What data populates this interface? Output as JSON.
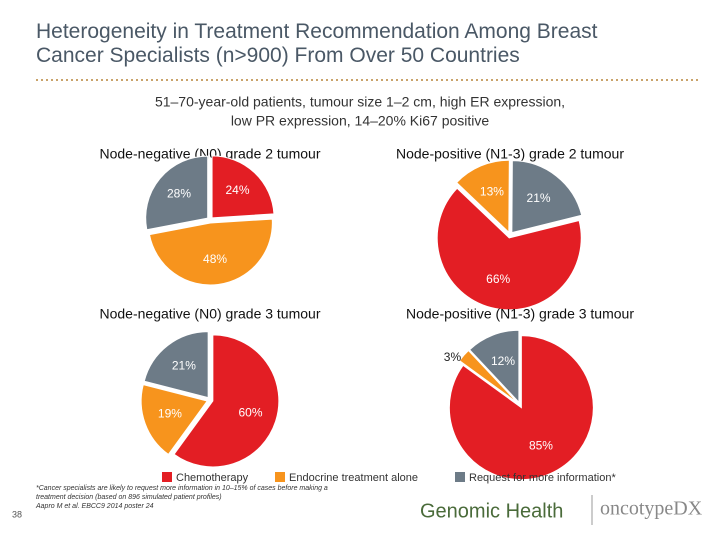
{
  "title": "Heterogeneity in Treatment Recommendation Among Breast Cancer Specialists (n>900) From Over 50 Countries",
  "subtitle": [
    "51–70-year-old patients, tumour size 1–2 cm, high ER expression,",
    "low PR expression, 14–20% Ki67 positive"
  ],
  "footnote": [
    "*Cancer specialists are likely to request more information in 10–15% of cases before making a",
    "treatment decision (based on 896 simulated patient profiles)",
    "Aapro M et al. EBCC9 2014 poster 24"
  ],
  "page_number": "38",
  "logos": [
    "Genomic Health",
    "oncotypeDX"
  ],
  "chart_data": [
    {
      "type": "pie",
      "title": "Node-negative (N0) grade 2 tumour",
      "categories": [
        "Chemotherapy",
        "Endocrine treatment alone",
        "Request for more information*"
      ],
      "values": [
        24,
        48,
        28
      ],
      "value_labels": [
        "24%",
        "48%",
        "28%"
      ],
      "colors": [
        "#e31e24",
        "#f7941d",
        "#6d7b87"
      ],
      "startangle": 0
    },
    {
      "type": "pie",
      "title": "Node-positive (N1-3) grade 2 tumour",
      "categories": [
        "Chemotherapy",
        "Endocrine treatment alone",
        "Request for more information*"
      ],
      "values": [
        66,
        13,
        21
      ],
      "value_labels": [
        "66%",
        "13%",
        "21%"
      ],
      "colors": [
        "#e31e24",
        "#f7941d",
        "#6d7b87"
      ],
      "startangle": 76
    },
    {
      "type": "pie",
      "title": "Node-negative (N0) grade 3 tumour",
      "categories": [
        "Chemotherapy",
        "Endocrine treatment alone",
        "Request for more information*"
      ],
      "values": [
        60,
        19,
        21
      ],
      "value_labels": [
        "60%",
        "19%",
        "21%"
      ],
      "colors": [
        "#e31e24",
        "#f7941d",
        "#6d7b87"
      ],
      "startangle": 0
    },
    {
      "type": "pie",
      "title": "Node-positive (N1-3) grade 3 tumour",
      "categories": [
        "Chemotherapy",
        "Endocrine treatment alone",
        "Request for more information*"
      ],
      "values": [
        85,
        3,
        12
      ],
      "value_labels": [
        "85%",
        "3%",
        "12%"
      ],
      "colors": [
        "#e31e24",
        "#f7941d",
        "#6d7b87"
      ],
      "startangle": 0
    }
  ]
}
